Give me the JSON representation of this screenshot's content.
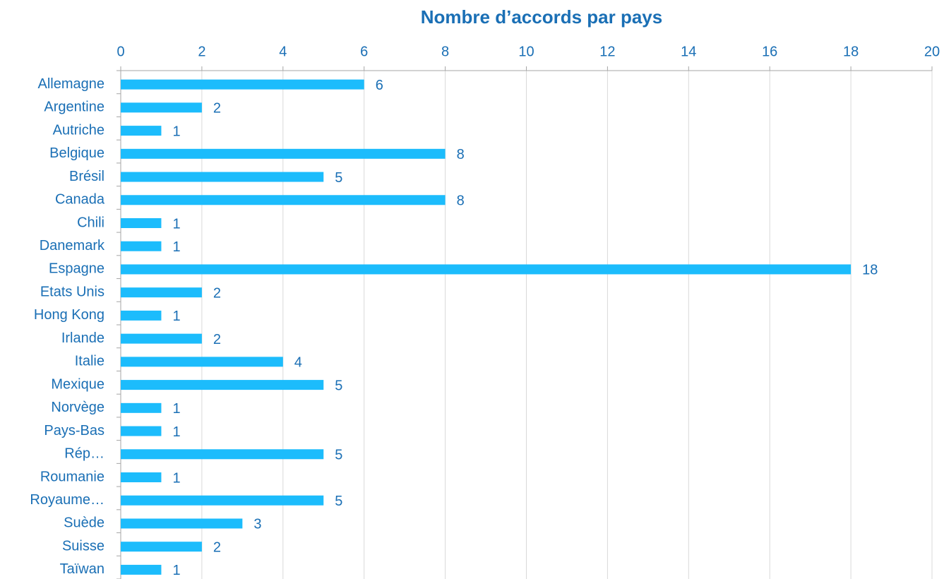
{
  "chart_data": {
    "type": "bar",
    "orientation": "horizontal",
    "title": "Nombre d’accords par pays",
    "categories": [
      "Allemagne",
      "Argentine",
      "Autriche",
      "Belgique",
      "Brésil",
      "Canada",
      "Chili",
      "Danemark",
      "Espagne",
      "Etats Unis",
      "Hong Kong",
      "Irlande",
      "Italie",
      "Mexique",
      "Norvège",
      "Pays-Bas",
      "Rép…",
      "Roumanie",
      "Royaume…",
      "Suède",
      "Suisse",
      "Taïwan"
    ],
    "values": [
      6,
      2,
      1,
      8,
      5,
      8,
      1,
      1,
      18,
      2,
      1,
      2,
      4,
      5,
      1,
      1,
      5,
      1,
      5,
      3,
      2,
      1
    ],
    "color": "#1cbcfc",
    "xlim": [
      0,
      20
    ],
    "xticks": [
      0,
      2,
      4,
      6,
      8,
      10,
      12,
      14,
      16,
      18,
      20
    ],
    "grid": true
  }
}
